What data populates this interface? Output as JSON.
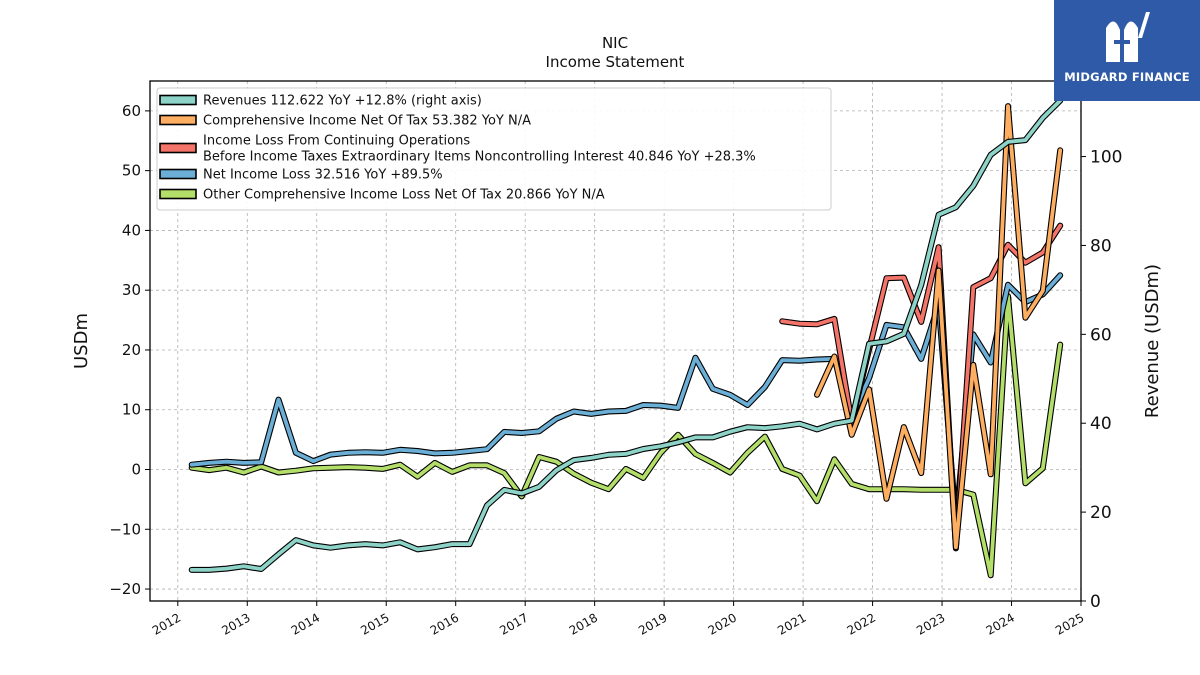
{
  "brand": {
    "name": "MIDGARD FINANCE",
    "color": "#2f5aa8"
  },
  "chart_data": {
    "type": "line",
    "title": "NIC",
    "subtitle": "Income Statement",
    "ylabel": "USDm",
    "y2label": "Revenue (USDm)",
    "ylim": [
      -22,
      65
    ],
    "y2lim": [
      0,
      117
    ],
    "xlim": [
      2011.6,
      2025.0
    ],
    "yticks": [
      -20,
      -10,
      0,
      10,
      20,
      30,
      40,
      50,
      60
    ],
    "y2ticks": [
      0,
      20,
      40,
      60,
      80,
      100
    ],
    "xticks": [
      2012,
      2013,
      2014,
      2015,
      2016,
      2017,
      2018,
      2019,
      2020,
      2021,
      2022,
      2023,
      2024,
      2025
    ],
    "xticklabels": [
      "2012",
      "2013",
      "2014",
      "2015",
      "2016",
      "2017",
      "2018",
      "2019",
      "2020",
      "2021",
      "2022",
      "2023",
      "2024",
      "2025"
    ],
    "grid": true,
    "legend_position": "top-left",
    "series": [
      {
        "name": "Revenues",
        "legend": "Revenues  112.622 YoY +12.8% (right axis)",
        "color": "#8dd3c7",
        "axis": "right",
        "x": [
          2012.2,
          2012.45,
          2012.7,
          2012.95,
          2013.2,
          2013.45,
          2013.7,
          2013.95,
          2014.2,
          2014.45,
          2014.7,
          2014.95,
          2015.2,
          2015.45,
          2015.7,
          2015.95,
          2016.2,
          2016.45,
          2016.7,
          2016.95,
          2017.2,
          2017.45,
          2017.7,
          2017.95,
          2018.2,
          2018.45,
          2018.7,
          2018.95,
          2019.2,
          2019.45,
          2019.7,
          2019.95,
          2020.2,
          2020.45,
          2020.7,
          2020.95,
          2021.2,
          2021.45,
          2021.7,
          2021.95,
          2022.2,
          2022.45,
          2022.7,
          2022.95,
          2023.2,
          2023.45,
          2023.7,
          2023.95,
          2024.2,
          2024.45,
          2024.7
        ],
        "values": [
          7,
          7,
          7.3,
          7.8,
          7.2,
          10.5,
          13.7,
          12.5,
          12,
          12.5,
          12.8,
          12.5,
          13.2,
          11.6,
          12.1,
          12.8,
          12.8,
          21.5,
          25,
          24.2,
          25.7,
          29.4,
          31.7,
          32.2,
          32.9,
          33.1,
          34.2,
          34.8,
          35.7,
          36.8,
          36.8,
          38.1,
          39.1,
          38.9,
          39.3,
          39.9,
          38.6,
          39.9,
          40.6,
          57.9,
          58.4,
          60.1,
          71.1,
          86.9,
          88.6,
          93.4,
          100.4,
          103.3,
          103.7,
          108.7,
          112.6
        ]
      },
      {
        "name": "Comprehensive Income Net Of Tax",
        "legend": "Comprehensive Income Net Of Tax  53.382 YoY N/A",
        "color": "#fdae61",
        "axis": "left",
        "x": [
          2021.2,
          2021.45,
          2021.7,
          2021.95,
          2022.2,
          2022.45,
          2022.7,
          2022.95,
          2023.2,
          2023.45,
          2023.7,
          2023.95,
          2024.2,
          2024.45,
          2024.7
        ],
        "values": [
          12.5,
          18.9,
          5.8,
          13.4,
          -4.9,
          7.1,
          -0.6,
          33.3,
          -13,
          17.5,
          -0.8,
          60.8,
          25.4,
          29.9,
          53.4
        ]
      },
      {
        "name": "Income Loss From Continuing Operations Before Income Taxes Extraordinary Items Noncontrolling Interest",
        "legend": "Income Loss From Continuing Operations\nBefore Income Taxes Extraordinary Items Noncontrolling Interest  40.846 YoY +28.3%",
        "color": "#f4746a",
        "axis": "left",
        "x": [
          2020.7,
          2020.95,
          2021.2,
          2021.45,
          2021.7,
          2021.95,
          2022.2,
          2022.45,
          2022.7,
          2022.95,
          2023.2,
          2023.45,
          2023.7,
          2023.95,
          2024.2,
          2024.45,
          2024.7
        ],
        "values": [
          24.8,
          24.4,
          24.3,
          25.2,
          7.9,
          20.1,
          32,
          32.1,
          24.7,
          37.2,
          -13.2,
          30.5,
          32,
          37.6,
          34.6,
          36.3,
          40.8
        ]
      },
      {
        "name": "Net Income Loss",
        "legend": "Net Income Loss  32.516 YoY +89.5%",
        "color": "#6baed6",
        "axis": "left",
        "x": [
          2012.2,
          2012.45,
          2012.7,
          2012.95,
          2013.2,
          2013.45,
          2013.7,
          2013.95,
          2014.2,
          2014.45,
          2014.7,
          2014.95,
          2015.2,
          2015.45,
          2015.7,
          2015.95,
          2016.2,
          2016.45,
          2016.7,
          2016.95,
          2017.2,
          2017.45,
          2017.7,
          2017.95,
          2018.2,
          2018.45,
          2018.7,
          2018.95,
          2019.2,
          2019.45,
          2019.7,
          2019.95,
          2020.2,
          2020.45,
          2020.7,
          2020.95,
          2021.2,
          2021.45,
          2021.7,
          2021.95,
          2022.2,
          2022.45,
          2022.7,
          2022.95,
          2023.2,
          2023.45,
          2023.7,
          2023.95,
          2024.2,
          2024.45,
          2024.7
        ],
        "values": [
          0.8,
          1.1,
          1.3,
          1.1,
          1.2,
          11.7,
          2.8,
          1.4,
          2.5,
          2.8,
          2.9,
          2.8,
          3.3,
          3.1,
          2.7,
          2.8,
          3.1,
          3.4,
          6.3,
          6.1,
          6.4,
          8.5,
          9.7,
          9.3,
          9.7,
          9.8,
          10.8,
          10.7,
          10.3,
          18.7,
          13.5,
          12.5,
          10.8,
          13.8,
          18.3,
          18.2,
          18.4,
          18.5,
          8.7,
          15.3,
          24.2,
          23.8,
          18.5,
          27.6,
          -8.8,
          22.6,
          17.9,
          30.9,
          28,
          29.3,
          32.5
        ]
      },
      {
        "name": "Other Comprehensive Income Loss Net Of Tax",
        "legend": "Other Comprehensive Income Loss Net Of Tax  20.866 YoY N/A",
        "color": "#b3de69",
        "axis": "left",
        "x": [
          2012.2,
          2012.45,
          2012.7,
          2012.95,
          2013.2,
          2013.45,
          2013.7,
          2013.95,
          2014.2,
          2014.45,
          2014.7,
          2014.95,
          2015.2,
          2015.45,
          2015.7,
          2015.95,
          2016.2,
          2016.45,
          2016.7,
          2016.95,
          2017.2,
          2017.45,
          2017.7,
          2017.95,
          2018.2,
          2018.45,
          2018.7,
          2018.95,
          2019.2,
          2019.45,
          2019.7,
          2019.95,
          2020.2,
          2020.45,
          2020.7,
          2020.95,
          2021.2,
          2021.45,
          2021.7,
          2021.95,
          2022.2,
          2022.45,
          2022.7,
          2022.95,
          2023.2,
          2023.45,
          2023.7,
          2023.95,
          2024.2,
          2024.45,
          2024.7
        ],
        "values": [
          0.3,
          -0.1,
          0.3,
          -0.5,
          0.5,
          -0.5,
          -0.2,
          0.2,
          0.3,
          0.4,
          0.3,
          0.1,
          0.8,
          -1.2,
          1.1,
          -0.4,
          0.7,
          0.7,
          -0.6,
          -4.5,
          2.1,
          1.3,
          -0.7,
          -2.2,
          -3.3,
          0.1,
          -1.4,
          2.8,
          5.8,
          2.6,
          1.1,
          -0.5,
          2.8,
          5.5,
          0.1,
          -1,
          -5.3,
          1.7,
          -2.4,
          -3.3,
          -3.3,
          -3.3,
          -3.4,
          -3.4,
          -3.4,
          -4.2,
          -17.7,
          29,
          -2.3,
          0.2,
          20.9
        ]
      }
    ]
  }
}
